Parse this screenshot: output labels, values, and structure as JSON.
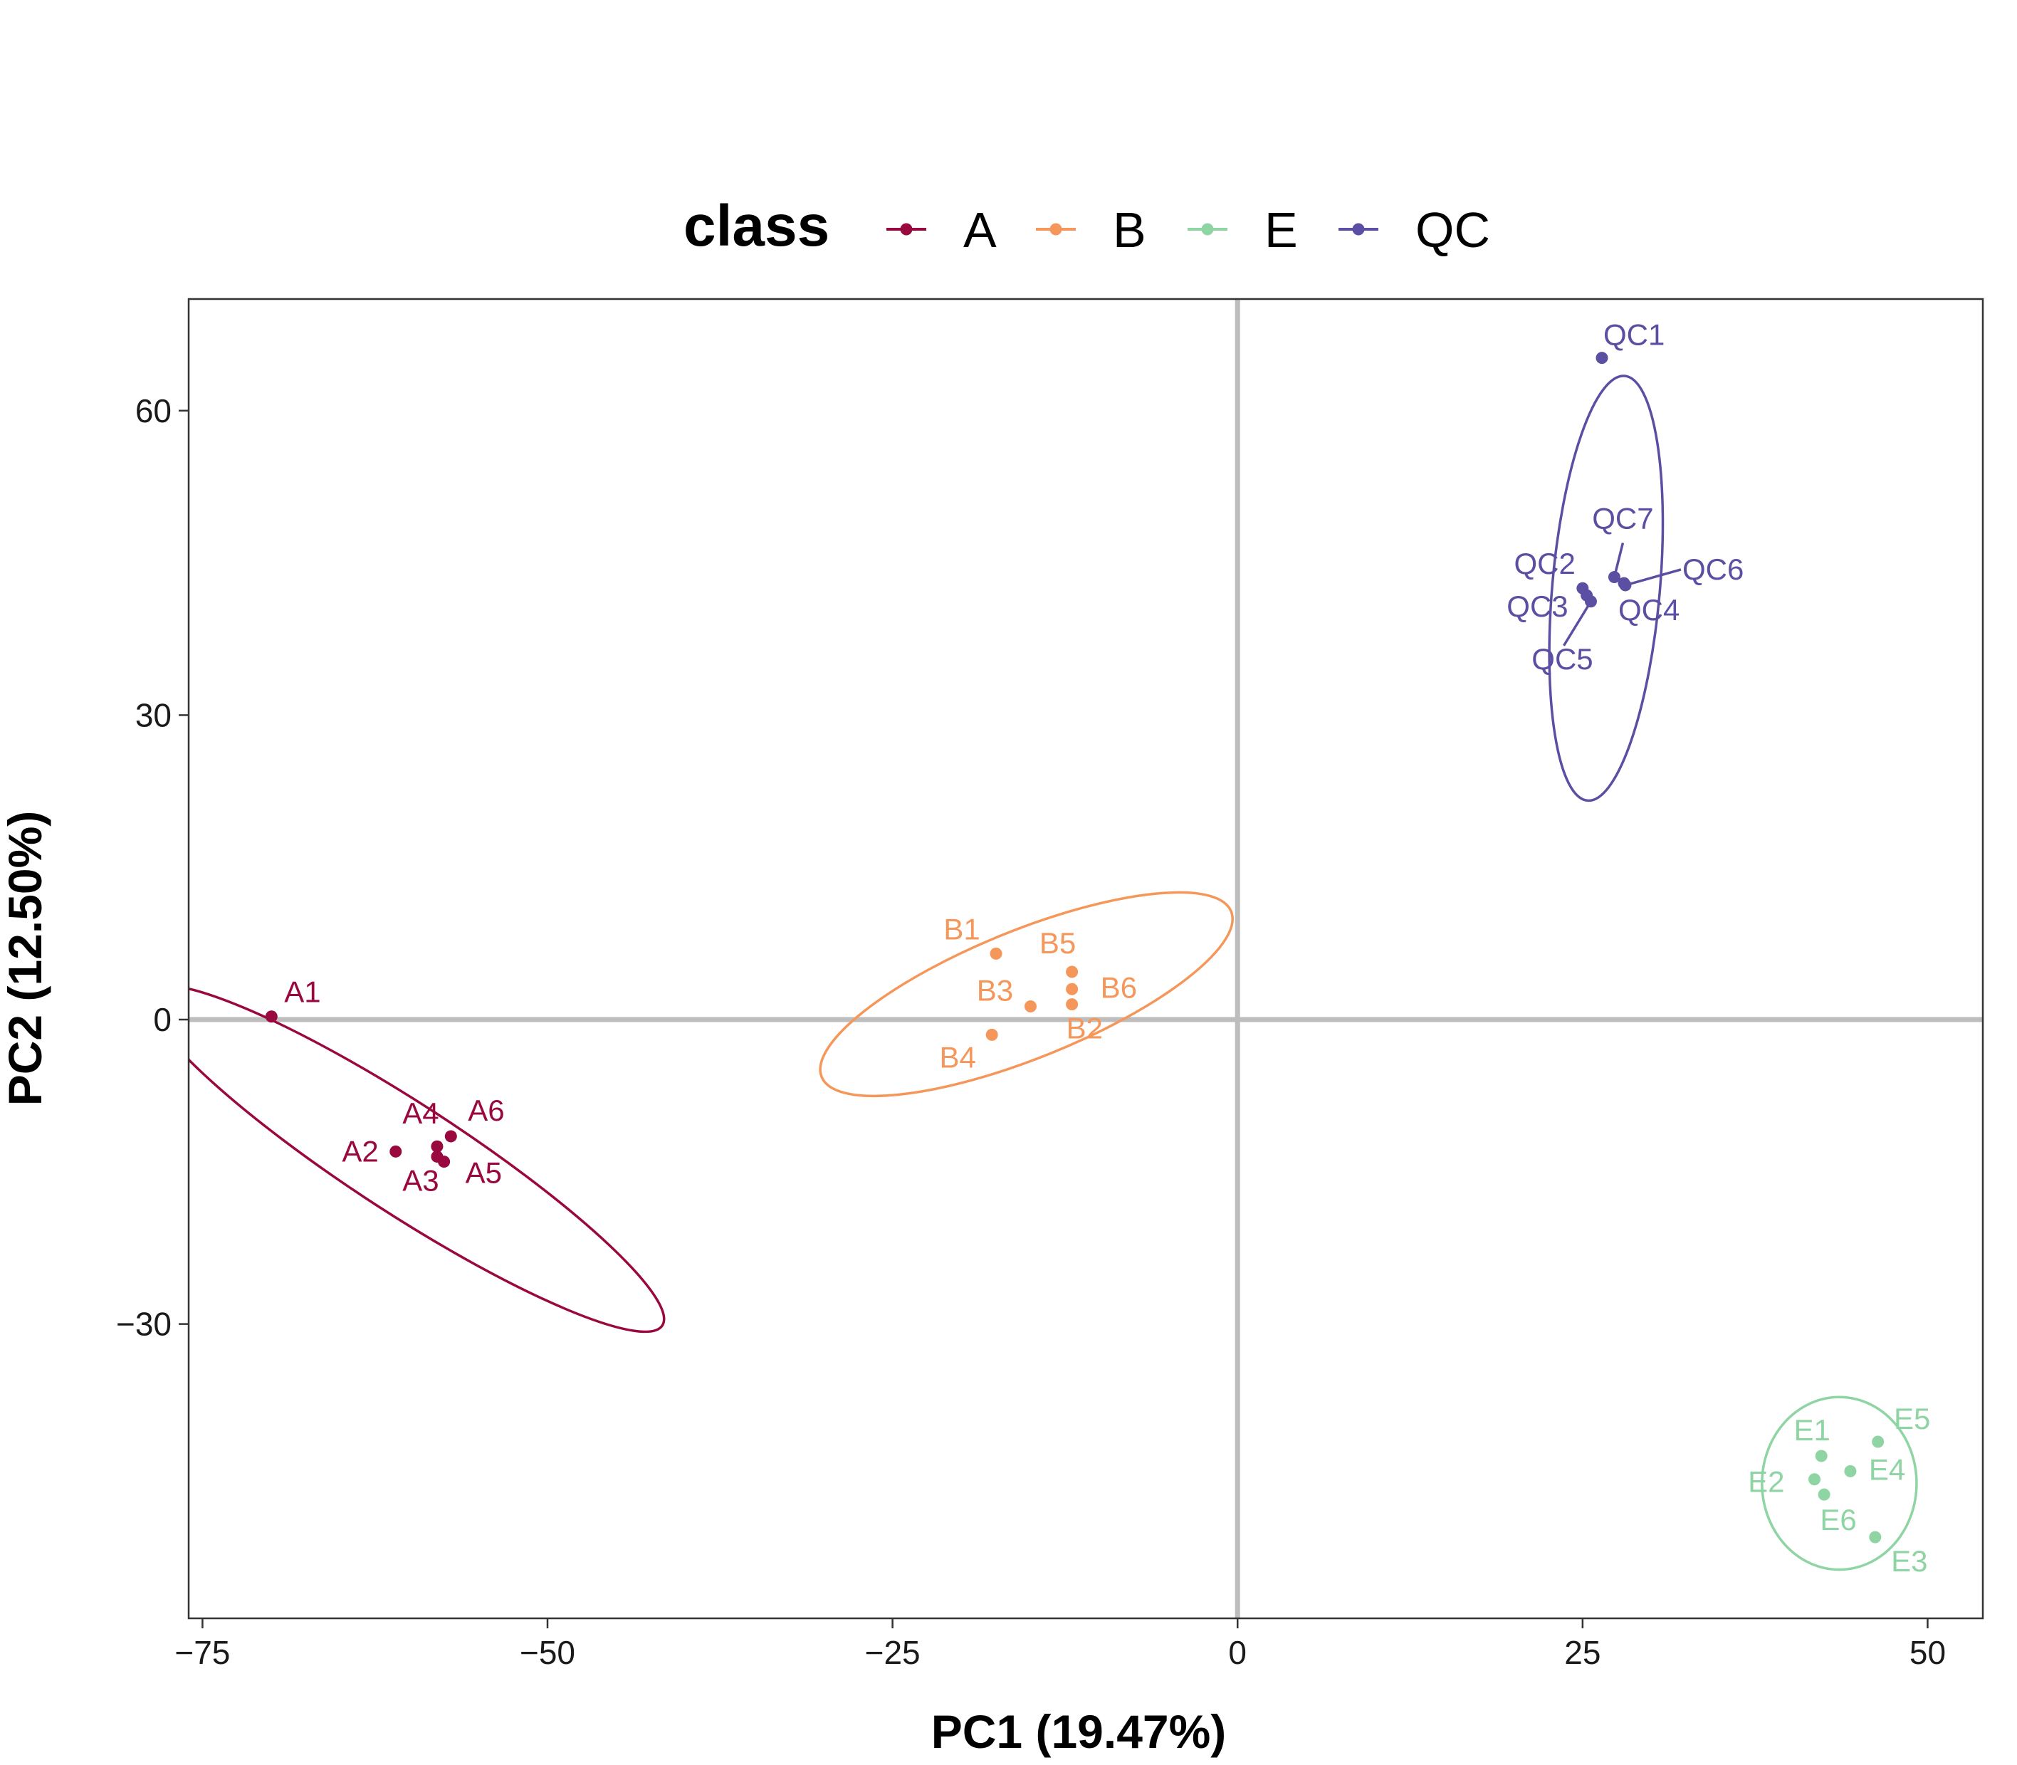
{
  "chart_data": {
    "type": "scatter",
    "xlabel": "PC1 (19.47%)",
    "ylabel": "PC2 (12.50%)",
    "xlim": [
      -76,
      54
    ],
    "ylim": [
      -59,
      71
    ],
    "x_ticks": [
      -75,
      -50,
      -25,
      0,
      25,
      50
    ],
    "x_tick_labels": [
      "−75",
      "−50",
      "−25",
      "0",
      "25",
      "50"
    ],
    "y_ticks": [
      -30,
      0,
      30,
      60
    ],
    "y_tick_labels": [
      "−30",
      "0",
      "30",
      "60"
    ],
    "reference_lines": {
      "x": 0,
      "y": 0
    },
    "grid": false,
    "legend": {
      "title": "class",
      "position": "top"
    },
    "colors": {
      "A": "#99083f",
      "B": "#f5975a",
      "E": "#8fd4a3",
      "QC": "#5a4fa2"
    },
    "series": [
      {
        "name": "A",
        "points": [
          {
            "label": "A1",
            "x": -70.0,
            "y": 0.3
          },
          {
            "label": "A2",
            "x": -61.0,
            "y": -13.0
          },
          {
            "label": "A3",
            "x": -58.0,
            "y": -13.5
          },
          {
            "label": "A4",
            "x": -58.0,
            "y": -12.5
          },
          {
            "label": "A5",
            "x": -57.5,
            "y": -14.0
          },
          {
            "label": "A6",
            "x": -57.0,
            "y": -11.5
          }
        ],
        "ellipse": {
          "cx": -60.3,
          "cy": -13.7,
          "rx": 22.2,
          "ry": 5.4,
          "angle_deg": 33
        }
      },
      {
        "name": "B",
        "points": [
          {
            "label": "B1",
            "x": -17.5,
            "y": 6.5
          },
          {
            "label": "B2",
            "x": -12.0,
            "y": 1.5
          },
          {
            "label": "B3",
            "x": -15.0,
            "y": 1.3
          },
          {
            "label": "B4",
            "x": -17.8,
            "y": -1.5
          },
          {
            "label": "B5",
            "x": -12.0,
            "y": 4.7
          },
          {
            "label": "B6",
            "x": -12.0,
            "y": 3.0
          }
        ],
        "ellipse": {
          "cx": -15.3,
          "cy": 2.5,
          "rx": 16.0,
          "ry": 6.3,
          "angle_deg": -22
        }
      },
      {
        "name": "E",
        "points": [
          {
            "label": "E1",
            "x": 42.3,
            "y": -43.0
          },
          {
            "label": "E2",
            "x": 41.8,
            "y": -45.3
          },
          {
            "label": "E3",
            "x": 46.2,
            "y": -51.0
          },
          {
            "label": "E4",
            "x": 44.4,
            "y": -44.5
          },
          {
            "label": "E5",
            "x": 46.4,
            "y": -41.6
          },
          {
            "label": "E6",
            "x": 42.5,
            "y": -46.8
          }
        ],
        "ellipse": {
          "cx": 43.6,
          "cy": -45.7,
          "rx": 5.6,
          "ry": 8.5,
          "angle_deg": 0
        }
      },
      {
        "name": "QC",
        "points": [
          {
            "label": "QC1",
            "x": 26.4,
            "y": 65.2
          },
          {
            "label": "QC2",
            "x": 25.0,
            "y": 42.5
          },
          {
            "label": "QC3",
            "x": 25.3,
            "y": 41.8
          },
          {
            "label": "QC4",
            "x": 28.0,
            "y": 43.0
          },
          {
            "label": "QC5",
            "x": 25.6,
            "y": 41.2
          },
          {
            "label": "QC6",
            "x": 28.1,
            "y": 42.8
          },
          {
            "label": "QC7",
            "x": 27.3,
            "y": 43.6
          }
        ],
        "ellipse": {
          "cx": 26.7,
          "cy": 42.5,
          "rx": 3.9,
          "ry": 21.0,
          "angle_deg": 5
        }
      }
    ]
  }
}
